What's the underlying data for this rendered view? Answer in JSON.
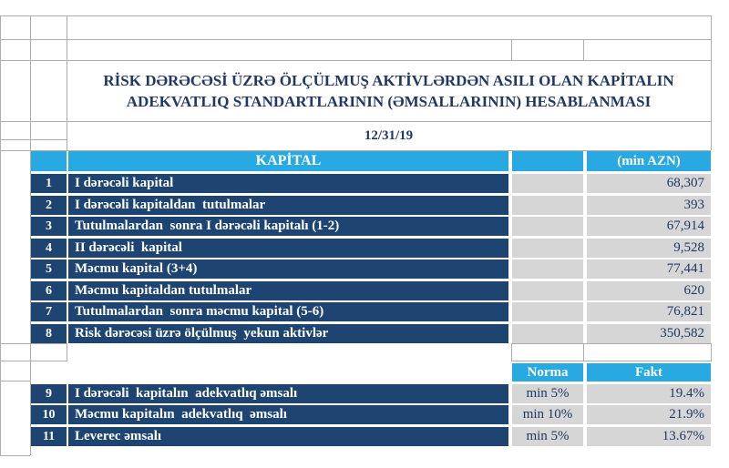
{
  "report": {
    "title_line1": "RİSK DƏRƏCƏSİ ÜZRƏ ÖLÇÜLMUŞ AKTİVLƏRDƏN ASILI OLAN KAPİTALIN",
    "title_line2": "ADEKVATLIQ STANDARTLARININ (ƏMSALLARININ) HESABLANMASI",
    "date": "12/31/19"
  },
  "capital_table": {
    "header_label": "KAPİTAL",
    "header_unit": "(min AZN)",
    "rows": [
      {
        "num": "1",
        "label": "I dərəcəli kapital",
        "value": "68,307"
      },
      {
        "num": "2",
        "label": "I dərəcəli kapitaldan  tutulmalar",
        "value": "393"
      },
      {
        "num": "3",
        "label": "Tutulmalardan  sonra I dərəcəli kapitalı (1-2)",
        "value": "67,914"
      },
      {
        "num": "4",
        "label": "II dərəcəli  kapital",
        "value": "9,528"
      },
      {
        "num": "5",
        "label": "Məcmu kapital (3+4)",
        "value": "77,441"
      },
      {
        "num": "6",
        "label": "Məcmu kapitaldan tutulmalar",
        "value": "620"
      },
      {
        "num": "7",
        "label": "Tutulmalardan  sonra məcmu kapital (5-6)",
        "value": "76,821"
      },
      {
        "num": "8",
        "label": "Risk dərəcəsi üzrə ölçülmuş  yekun aktivlər",
        "value": "350,582"
      }
    ]
  },
  "ratio_table": {
    "header_norma": "Norma",
    "header_fakt": "Fakt",
    "rows": [
      {
        "num": "9",
        "label": "I dərəcəli  kapitalın  adekvatlıq əmsalı",
        "norma": "min 5%",
        "fakt": "19.4%"
      },
      {
        "num": "10",
        "label": "Məcmu kapitalın  adekvatlıq  əmsalı",
        "norma": "min 10%",
        "fakt": "21.9%"
      },
      {
        "num": "11",
        "label": "Leverec əmsalı",
        "norma": "min 5%",
        "fakt": "13.67%"
      }
    ]
  },
  "colors": {
    "accent_cyan": "#29A9E1",
    "row_navy": "#1E4571",
    "text_navy": "#1F3864",
    "cell_gray": "#D6D6D6",
    "gridline": "#ADADAD"
  }
}
